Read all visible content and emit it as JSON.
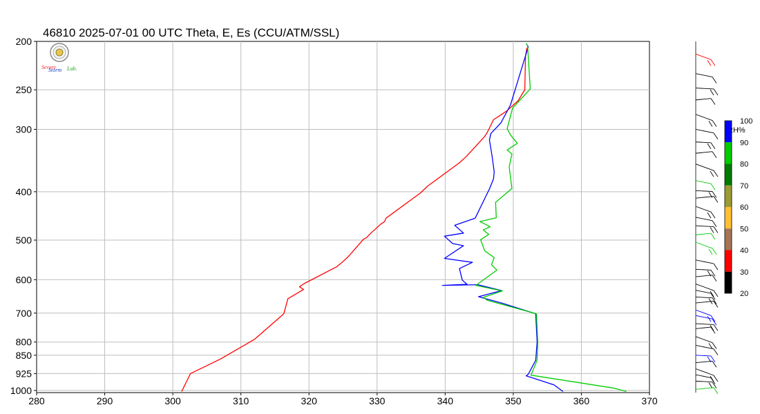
{
  "chart_data": {
    "type": "line",
    "title": "46810  2025-07-01 00 UTC  Theta, E, Es (CCU/ATM/SSL)",
    "xlabel": "",
    "ylabel": "",
    "xlim": [
      280,
      370
    ],
    "ylim": [
      1000,
      200
    ],
    "y_scale": "log",
    "grid": true,
    "x_ticks": [
      "280",
      "290",
      "300",
      "310",
      "320",
      "330",
      "340",
      "350",
      "360",
      "370"
    ],
    "y_ticks": [
      "200",
      "250",
      "300",
      "400",
      "500",
      "600",
      "700",
      "800",
      "850",
      "925",
      "1000"
    ],
    "series": [
      {
        "color": "#ff0000",
        "points": [
          [
            301.3,
            1005
          ],
          [
            302.6,
            925
          ],
          [
            307,
            865
          ],
          [
            312,
            790
          ],
          [
            316.3,
            702
          ],
          [
            316.9,
            655
          ],
          [
            319.2,
            628
          ],
          [
            318.6,
            620
          ],
          [
            319.3,
            611
          ],
          [
            324.1,
            565
          ],
          [
            324.8,
            555
          ],
          [
            325.8,
            539
          ],
          [
            328,
            498
          ],
          [
            328.4,
            495
          ],
          [
            329.1,
            484
          ],
          [
            330.5,
            465
          ],
          [
            331.1,
            459
          ],
          [
            331.3,
            452
          ],
          [
            336.4,
            402
          ],
          [
            337.4,
            390
          ],
          [
            342.1,
            350
          ],
          [
            343.1,
            340
          ],
          [
            345.8,
            310
          ],
          [
            346.2,
            304
          ],
          [
            347.1,
            287
          ],
          [
            349,
            276
          ],
          [
            350.7,
            263
          ],
          [
            351.7,
            250
          ],
          [
            351.8,
            214
          ],
          [
            352,
            206
          ]
        ]
      },
      {
        "color": "#0000ff",
        "points": [
          [
            357.3,
            1005
          ],
          [
            356,
            975
          ],
          [
            351.9,
            935
          ],
          [
            352.2,
            928
          ],
          [
            353.3,
            870
          ],
          [
            353.5,
            800
          ],
          [
            353.3,
            702
          ],
          [
            348.4,
            669
          ],
          [
            344.9,
            649
          ],
          [
            348.3,
            631
          ],
          [
            344.8,
            614
          ],
          [
            339.6,
            616
          ],
          [
            343.2,
            613
          ],
          [
            342.5,
            601
          ],
          [
            342.1,
            570
          ],
          [
            344,
            554
          ],
          [
            339.9,
            544
          ],
          [
            342.7,
            513
          ],
          [
            341.1,
            508
          ],
          [
            339.9,
            491
          ],
          [
            342.7,
            484
          ],
          [
            341.4,
            467
          ],
          [
            344.4,
            452
          ],
          [
            346.3,
            400
          ],
          [
            346.5,
            395
          ],
          [
            347.1,
            377
          ],
          [
            347.2,
            365
          ],
          [
            346.9,
            340
          ],
          [
            346.5,
            315
          ],
          [
            346.7,
            306
          ],
          [
            348.2,
            291
          ],
          [
            349.6,
            268
          ],
          [
            352.2,
            205
          ],
          [
            351.9,
            202
          ]
        ]
      },
      {
        "color": "#00cc00",
        "points": [
          [
            366.6,
            1005
          ],
          [
            364.9,
            990
          ],
          [
            352.6,
            932
          ],
          [
            353.5,
            870
          ],
          [
            353.6,
            800
          ],
          [
            353.4,
            702
          ],
          [
            346.2,
            660
          ],
          [
            345.6,
            651
          ],
          [
            348.4,
            632
          ],
          [
            344.5,
            616
          ],
          [
            347.6,
            574
          ],
          [
            346.8,
            560
          ],
          [
            347.2,
            542
          ],
          [
            345.8,
            525
          ],
          [
            345.2,
            499
          ],
          [
            346.4,
            487
          ],
          [
            345.6,
            477
          ],
          [
            346.6,
            470
          ],
          [
            345.1,
            459
          ],
          [
            347.5,
            451
          ],
          [
            347.4,
            420
          ],
          [
            349.8,
            394
          ],
          [
            349.4,
            357
          ],
          [
            349.8,
            336
          ],
          [
            349.1,
            330
          ],
          [
            350.6,
            320
          ],
          [
            349.6,
            308
          ],
          [
            349.1,
            299
          ],
          [
            349.5,
            285
          ],
          [
            349.9,
            272
          ],
          [
            352.5,
            249
          ],
          [
            352.1,
            204
          ],
          [
            351.9,
            202
          ]
        ]
      }
    ]
  },
  "rh_scale": {
    "label": "RH%",
    "ticks": [
      "100",
      "90",
      "80",
      "70",
      "60",
      "50",
      "40",
      "30",
      "20"
    ],
    "colors": [
      "#0000ff",
      "#00cc00",
      "#007a00",
      "#9b9b33",
      "#ffbf33",
      "#a57556",
      "#ff0000",
      "#000000"
    ]
  },
  "logo": {
    "text_parts": [
      "Severe",
      "Storm",
      "Lab."
    ]
  }
}
